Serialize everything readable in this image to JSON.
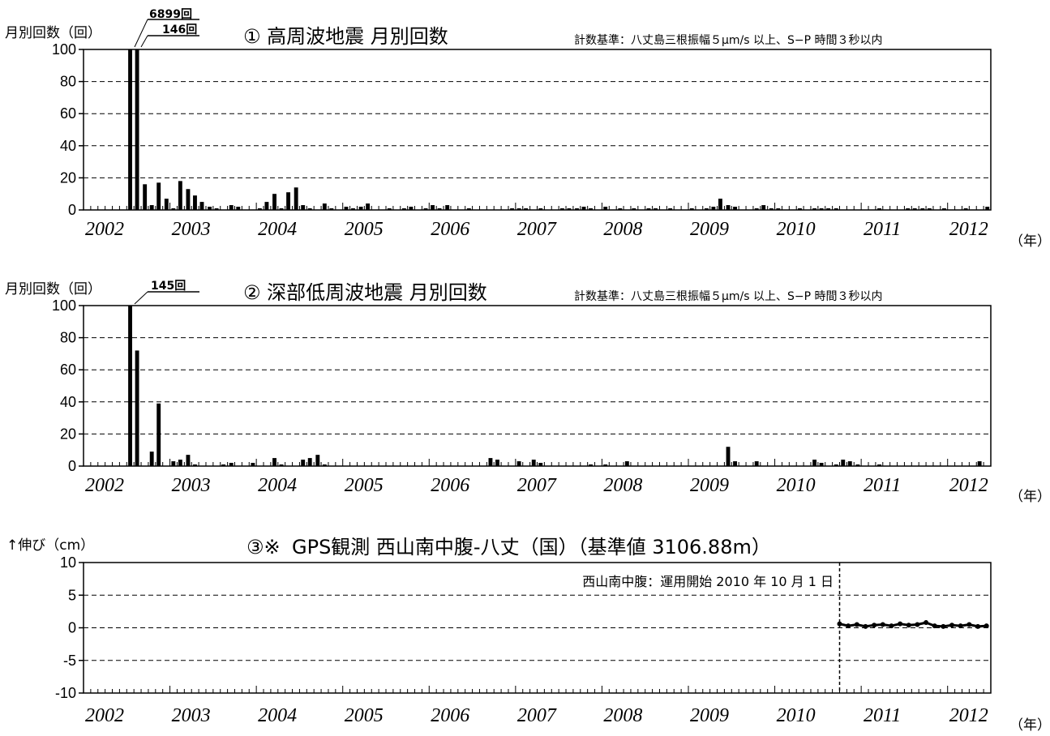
{
  "colors": {
    "bar": "#000000",
    "grid": "#000000",
    "background": "#ffffff"
  },
  "chart_data": [
    {
      "type": "bar",
      "title": "① 高周波地震 月別回数",
      "criteria": "計数基準：八丈島三根振幅５μm/s 以上、S−P 時間３秒以内",
      "ylabel": "月別回数（回）",
      "xunit": "（年）",
      "ylim": [
        0,
        100
      ],
      "yticks": [
        "100",
        "80",
        "60",
        "40",
        "20",
        "0"
      ],
      "xlim": [
        2002.0,
        2012.5
      ],
      "xticks": [
        "2002",
        "2003",
        "2004",
        "2005",
        "2006",
        "2007",
        "2008",
        "2009",
        "2010",
        "2011",
        "2012"
      ],
      "grid": true,
      "annotations": [
        "6899回",
        "146回"
      ],
      "x": [
        2002.54,
        2002.62,
        2002.71,
        2002.79,
        2002.87,
        2002.96,
        2003.04,
        2003.12,
        2003.21,
        2003.29,
        2003.37,
        2003.46,
        2003.54,
        2003.71,
        2003.79,
        2004.04,
        2004.12,
        2004.21,
        2004.29,
        2004.37,
        2004.46,
        2004.54,
        2004.62,
        2004.79,
        2004.87,
        2005.04,
        2005.12,
        2005.21,
        2005.29,
        2005.54,
        2005.71,
        2005.79,
        2005.96,
        2006.04,
        2006.12,
        2006.21,
        2006.46,
        2006.96,
        2007.04,
        2007.12,
        2007.29,
        2007.54,
        2007.62,
        2007.71,
        2007.79,
        2007.87,
        2008.04,
        2008.21,
        2008.37,
        2008.54,
        2008.62,
        2008.79,
        2009.04,
        2009.21,
        2009.29,
        2009.37,
        2009.46,
        2009.54,
        2009.79,
        2009.87,
        2009.96,
        2010.04,
        2010.29,
        2010.46,
        2010.54,
        2010.62,
        2010.71,
        2011.21,
        2011.54,
        2011.62,
        2011.71,
        2011.79,
        2011.96,
        2012.21,
        2012.46
      ],
      "values": [
        100,
        100,
        16,
        3,
        17,
        7,
        1,
        18,
        13,
        9,
        5,
        2,
        1,
        3,
        2,
        1,
        5,
        10,
        1,
        11,
        14,
        3,
        1,
        4,
        1,
        2,
        1,
        2,
        4,
        1,
        1,
        2,
        1,
        3,
        1,
        3,
        1,
        1,
        1,
        1,
        1,
        1,
        1,
        1,
        2,
        1,
        2,
        1,
        1,
        1,
        1,
        1,
        1,
        1,
        2,
        7,
        3,
        2,
        1,
        3,
        1,
        1,
        1,
        1,
        1,
        1,
        1,
        1,
        1,
        1,
        1,
        1,
        1,
        1,
        2
      ]
    },
    {
      "type": "bar",
      "title": "② 深部低周波地震 月別回数",
      "criteria": "計数基準：八丈島三根振幅５μm/s 以上、S−P 時間３秒以内",
      "ylabel": "月別回数（回）",
      "xunit": "（年）",
      "ylim": [
        0,
        100
      ],
      "yticks": [
        "100",
        "80",
        "60",
        "40",
        "20",
        "0"
      ],
      "xlim": [
        2002.0,
        2012.5
      ],
      "xticks": [
        "2002",
        "2003",
        "2004",
        "2005",
        "2006",
        "2007",
        "2008",
        "2009",
        "2010",
        "2011",
        "2012"
      ],
      "grid": true,
      "annotations": [
        "145回"
      ],
      "x": [
        2002.54,
        2002.62,
        2002.79,
        2002.87,
        2003.04,
        2003.12,
        2003.21,
        2003.29,
        2003.62,
        2003.71,
        2003.96,
        2004.21,
        2004.29,
        2004.54,
        2004.62,
        2004.71,
        2004.79,
        2006.71,
        2006.79,
        2007.04,
        2007.21,
        2007.29,
        2007.87,
        2008.04,
        2008.29,
        2009.46,
        2009.54,
        2009.79,
        2010.46,
        2010.54,
        2010.71,
        2010.79,
        2010.87,
        2010.96,
        2011.21,
        2012.37
      ],
      "values": [
        100,
        72,
        9,
        39,
        3,
        4,
        7,
        1,
        1,
        2,
        2,
        5,
        1,
        4,
        5,
        7,
        1,
        5,
        4,
        3,
        4,
        2,
        1,
        1,
        3,
        12,
        3,
        3,
        4,
        2,
        1,
        4,
        3,
        1,
        1,
        3
      ]
    },
    {
      "type": "scatter",
      "title": "GPS観測 西山南中腹-八丈（国）（基準値 3106.88m）",
      "title_mark": "③※",
      "ylabel": "↑伸び（cm）",
      "xunit": "（年）",
      "ylim": [
        -10,
        10
      ],
      "yticks": [
        "10",
        "5",
        "0",
        "-5",
        "-10"
      ],
      "xlim": [
        2002.0,
        2012.5
      ],
      "xticks": [
        "2002",
        "2003",
        "2004",
        "2005",
        "2006",
        "2007",
        "2008",
        "2009",
        "2010",
        "2011",
        "2012"
      ],
      "grid": true,
      "annotation": "西山南中腹：運用開始 2010 年 10 月 1 日",
      "vline_x": 2010.75,
      "x": [
        2010.75,
        2010.85,
        2010.95,
        2011.05,
        2011.15,
        2011.25,
        2011.35,
        2011.45,
        2011.55,
        2011.65,
        2011.75,
        2011.85,
        2011.95,
        2012.05,
        2012.15,
        2012.25,
        2012.35,
        2012.45
      ],
      "values": [
        0.6,
        0.3,
        0.5,
        0.2,
        0.4,
        0.5,
        0.3,
        0.6,
        0.4,
        0.5,
        0.8,
        0.3,
        0.2,
        0.4,
        0.3,
        0.5,
        0.2,
        0.3
      ]
    }
  ]
}
